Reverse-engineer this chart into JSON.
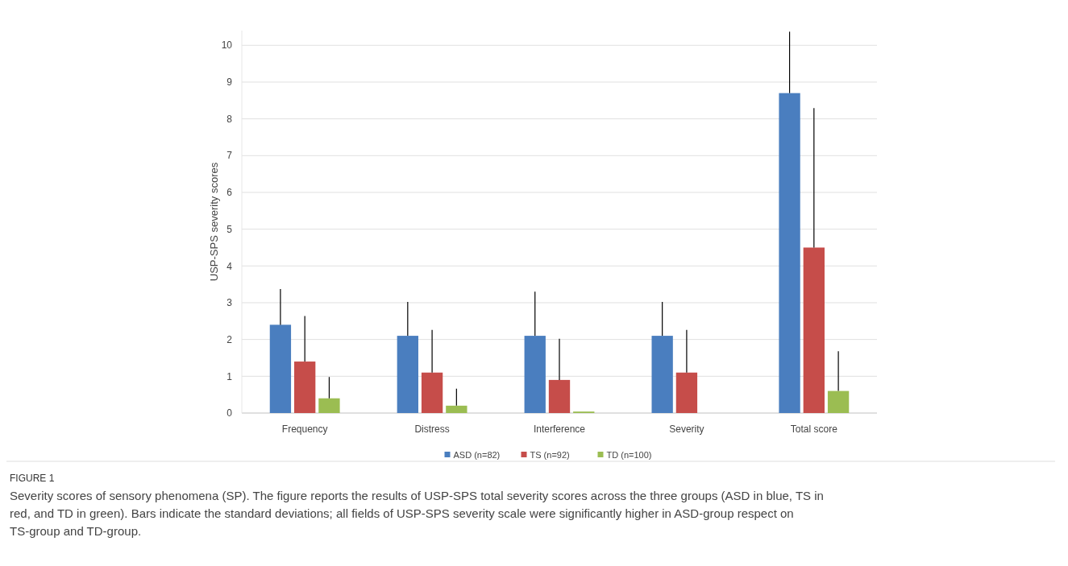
{
  "chart_data": {
    "type": "bar",
    "categories": [
      "Frequency",
      "Distress",
      "Interference",
      "Severity",
      "Total score"
    ],
    "ylabel": "USP-SPS severity scores",
    "series": [
      {
        "name": "ASD (n=82)",
        "color": "#4a7ebf",
        "values": [
          2.4,
          2.1,
          2.1,
          2.1,
          8.7
        ],
        "errors": [
          [
            2.4,
            3.37
          ],
          [
            2.1,
            3.02
          ],
          [
            2.1,
            3.3
          ],
          [
            2.1,
            3.02
          ],
          [
            8.7,
            10.37
          ]
        ]
      },
      {
        "name": "TS (n=92)",
        "color": "#c64d4a",
        "values": [
          1.4,
          1.1,
          0.9,
          1.1,
          4.5
        ],
        "errors": [
          [
            1.4,
            2.64
          ],
          [
            1.1,
            2.26
          ],
          [
            0.9,
            2.02
          ],
          [
            1.1,
            2.26
          ],
          [
            4.5,
            8.29
          ]
        ]
      },
      {
        "name": "TD (n=100)",
        "color": "#9bbd52",
        "values": [
          0.4,
          0.2,
          0.04,
          0,
          0.6
        ],
        "errors": [
          [
            0.4,
            0.98
          ],
          [
            0.2,
            0.66
          ],
          null,
          null,
          [
            0.6,
            1.68
          ]
        ]
      }
    ],
    "ylim": [
      0,
      10.4
    ],
    "yticks": [
      0,
      1,
      2,
      3,
      4,
      5,
      6,
      7,
      8,
      9,
      10
    ],
    "grid": "y",
    "legend": "bottom",
    "annotations": [
      "FIGURE 1",
      "Severity scores of sensory phenomena (SP). The figure reports the results of USP-SPS total severity scores across the three groups (ASD in blue, TS in red, and TD in green). Bars indicate the standard deviations; all fields of USP-SPS severity scale were significantly higher in ASD-group respect on TS-group and TD-group."
    ]
  }
}
